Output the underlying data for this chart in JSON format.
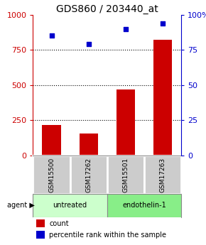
{
  "title": "GDS860 / 203440_at",
  "samples": [
    "GSM15500",
    "GSM17262",
    "GSM15501",
    "GSM17263"
  ],
  "counts": [
    215,
    155,
    470,
    820
  ],
  "percentiles": [
    85,
    79,
    90,
    94
  ],
  "ylim_left": [
    0,
    1000
  ],
  "ylim_right": [
    0,
    100
  ],
  "yticks_left": [
    0,
    250,
    500,
    750,
    1000
  ],
  "yticks_right": [
    0,
    25,
    50,
    75,
    100
  ],
  "bar_color": "#cc0000",
  "dot_color": "#0000cc",
  "sample_bg_color": "#cccccc",
  "untreated_color": "#ccffcc",
  "endothelin_color": "#88ee88",
  "legend_count_color": "#cc0000",
  "legend_dot_color": "#0000cc",
  "title_fontsize": 10,
  "axis_left_color": "#cc0000",
  "axis_right_color": "#0000cc",
  "gridline_color": "black",
  "gridline_style": "dotted",
  "gridline_lw": 0.8
}
